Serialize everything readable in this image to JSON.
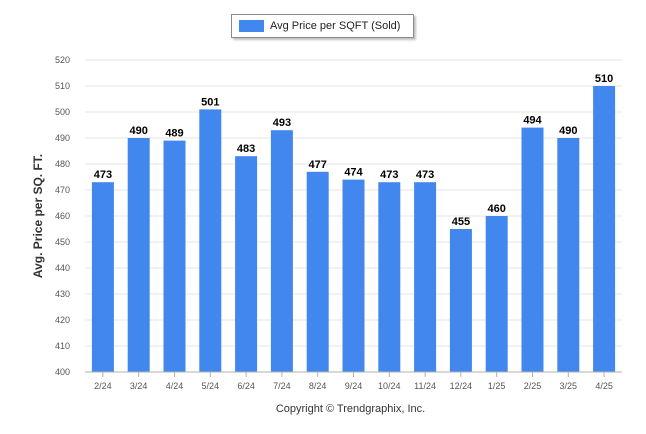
{
  "colors": {
    "bar": "#4287ee",
    "grid": "#e6e6e6",
    "axis": "#b0b0b0"
  },
  "legend": {
    "label": "Avg Price per SQFT (Sold)"
  },
  "footer": {
    "copyright": "Copyright © Trendgraphix, Inc."
  },
  "chart_data": {
    "type": "bar",
    "categories": [
      "2/24",
      "3/24",
      "4/24",
      "5/24",
      "6/24",
      "7/24",
      "8/24",
      "9/24",
      "10/24",
      "11/24",
      "12/24",
      "1/25",
      "2/25",
      "3/25",
      "4/25"
    ],
    "series": [
      {
        "name": "Avg Price per SQFT (Sold)",
        "values": [
          473,
          490,
          489,
          501,
          483,
          493,
          477,
          474,
          473,
          473,
          455,
          460,
          494,
          490,
          510
        ]
      }
    ],
    "ylabel": "Avg. Price per SQ. FT.",
    "ylim": [
      400,
      520
    ],
    "yticks": [
      400,
      410,
      420,
      430,
      440,
      450,
      460,
      470,
      480,
      490,
      500,
      510,
      520
    ],
    "grid": true,
    "legend_position": "top-center"
  }
}
